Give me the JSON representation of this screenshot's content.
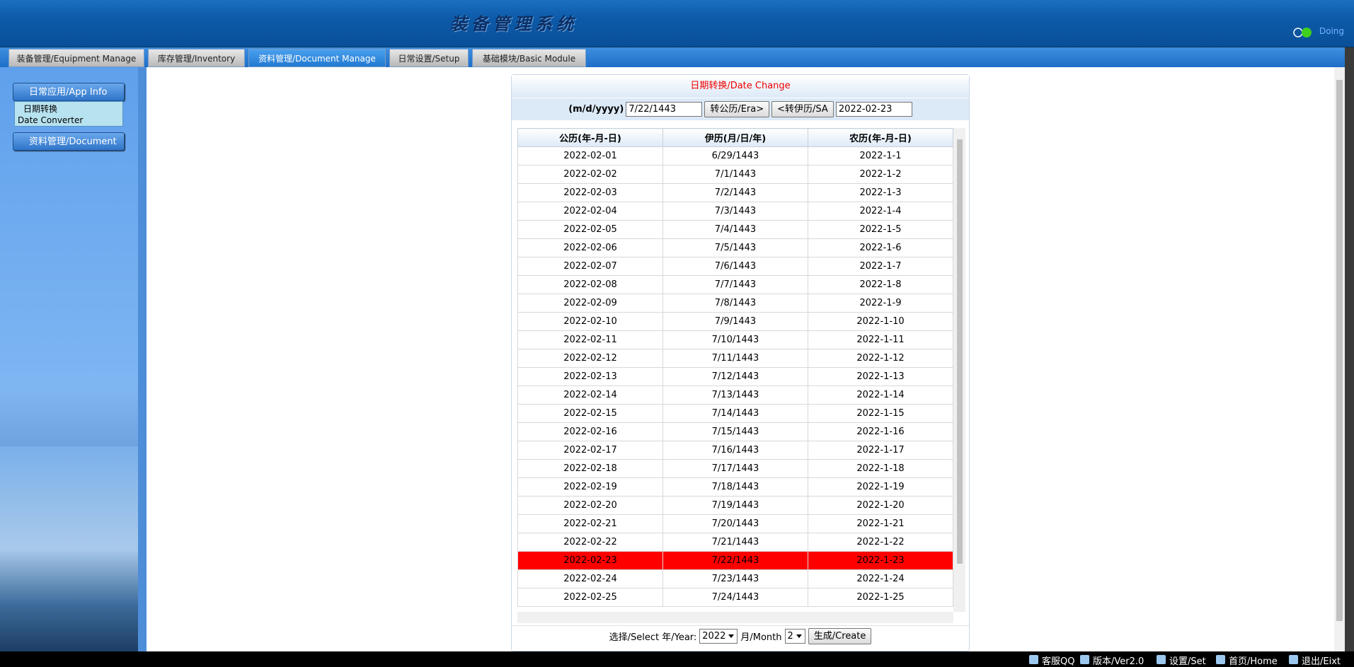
{
  "header": {
    "title": "装备管理系统",
    "status": "Doing"
  },
  "tabs": [
    "装备管理/Equipment Manage",
    "库存管理/Inventory",
    "资料管理/Document Manage",
    "日常设置/Setup",
    "基础模块/Basic Module"
  ],
  "sidebar": {
    "groups": [
      "日常应用/App Info",
      "资料管理/Document"
    ],
    "item": [
      "日期转换",
      "Date Converter"
    ]
  },
  "panel": {
    "title": "日期转换/Date Change",
    "format_label": "(m/d/yyyy)",
    "islamic_input": "7/22/1443",
    "to_era_button": "转公历/Era>",
    "to_sa_button": "<转伊历/SA",
    "era_input": "2022-02-23"
  },
  "table": {
    "headers": [
      "公历(年-月-日)",
      "伊历(月/日/年)",
      "农历(年-月-日)"
    ],
    "rows": [
      [
        "2022-02-01",
        "6/29/1443",
        "2022-1-1"
      ],
      [
        "2022-02-02",
        "7/1/1443",
        "2022-1-2"
      ],
      [
        "2022-02-03",
        "7/2/1443",
        "2022-1-3"
      ],
      [
        "2022-02-04",
        "7/3/1443",
        "2022-1-4"
      ],
      [
        "2022-02-05",
        "7/4/1443",
        "2022-1-5"
      ],
      [
        "2022-02-06",
        "7/5/1443",
        "2022-1-6"
      ],
      [
        "2022-02-07",
        "7/6/1443",
        "2022-1-7"
      ],
      [
        "2022-02-08",
        "7/7/1443",
        "2022-1-8"
      ],
      [
        "2022-02-09",
        "7/8/1443",
        "2022-1-9"
      ],
      [
        "2022-02-10",
        "7/9/1443",
        "2022-1-10"
      ],
      [
        "2022-02-11",
        "7/10/1443",
        "2022-1-11"
      ],
      [
        "2022-02-12",
        "7/11/1443",
        "2022-1-12"
      ],
      [
        "2022-02-13",
        "7/12/1443",
        "2022-1-13"
      ],
      [
        "2022-02-14",
        "7/13/1443",
        "2022-1-14"
      ],
      [
        "2022-02-15",
        "7/14/1443",
        "2022-1-15"
      ],
      [
        "2022-02-16",
        "7/15/1443",
        "2022-1-16"
      ],
      [
        "2022-02-17",
        "7/16/1443",
        "2022-1-17"
      ],
      [
        "2022-02-18",
        "7/17/1443",
        "2022-1-18"
      ],
      [
        "2022-02-19",
        "7/18/1443",
        "2022-1-19"
      ],
      [
        "2022-02-20",
        "7/19/1443",
        "2022-1-20"
      ],
      [
        "2022-02-21",
        "7/20/1443",
        "2022-1-21"
      ],
      [
        "2022-02-22",
        "7/21/1443",
        "2022-1-22"
      ],
      [
        "2022-02-23",
        "7/22/1443",
        "2022-1-23"
      ],
      [
        "2022-02-24",
        "7/23/1443",
        "2022-1-24"
      ],
      [
        "2022-02-25",
        "7/24/1443",
        "2022-1-25"
      ]
    ]
  },
  "footer": {
    "select_label": "选择/Select 年/Year:",
    "year": "2022",
    "month_label": "月/Month",
    "month": "2",
    "create_button": "生成/Create"
  },
  "statusbar": [
    "客服QQ",
    "版本/Ver2.0",
    "设置/Set",
    "首页/Home",
    "退出/Eixt"
  ]
}
